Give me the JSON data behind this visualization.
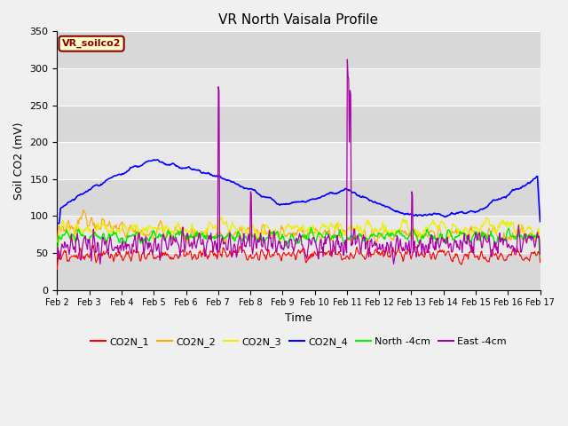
{
  "title": "VR North Vaisala Profile",
  "xlabel": "Time",
  "ylabel": "Soil CO2 (mV)",
  "annotation": "VR_soilco2",
  "ylim": [
    0,
    350
  ],
  "xlim": [
    0,
    15
  ],
  "xtick_labels": [
    "Feb 2",
    "Feb 3",
    "Feb 4",
    "Feb 5",
    "Feb 6",
    "Feb 7",
    "Feb 8",
    "Feb 9",
    "Feb 10",
    "Feb 11",
    "Feb 12",
    "Feb 13",
    "Feb 14",
    "Feb 15",
    "Feb 16",
    "Feb 17"
  ],
  "series_colors": {
    "CO2N_1": "#ff0000",
    "CO2N_2": "#ffaa00",
    "CO2N_3": "#eeee00",
    "CO2N_4": "#0000ff",
    "North -4cm": "#00ee00",
    "East -4cm": "#aa00aa"
  },
  "fig_facecolor": "#f0f0f0",
  "plot_facecolor": "#e8e8e8",
  "band_color_dark": "#d8d8d8",
  "band_color_light": "#e8e8e8",
  "grid_color": "#ffffff",
  "title_fontsize": 11,
  "axis_fontsize": 9,
  "tick_fontsize": 7,
  "legend_fontsize": 8,
  "seed": 42
}
